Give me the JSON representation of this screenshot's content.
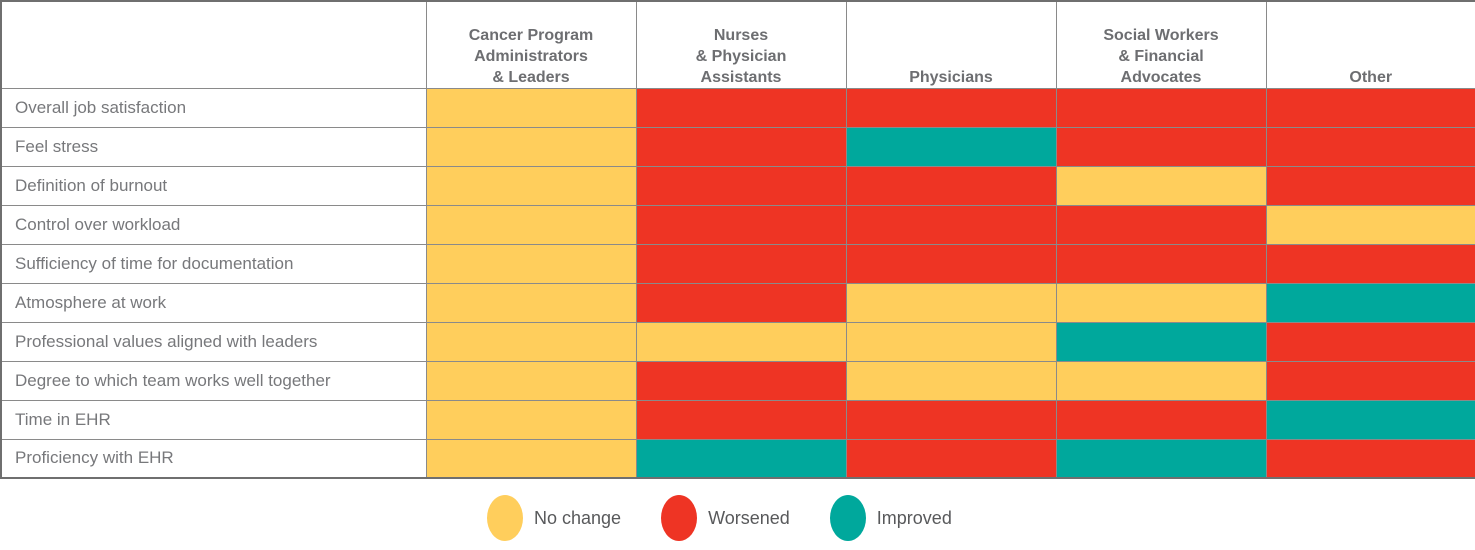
{
  "chart_data": {
    "type": "heatmap",
    "title": "",
    "columns": [
      "Cancer Program\nAdministrators\n& Leaders",
      "Nurses\n& Physician\nAssistants",
      "Physicians",
      "Social Workers\n& Financial\nAdvocates",
      "Other"
    ],
    "rows": [
      "Overall job satisfaction",
      "Feel stress",
      "Definition of burnout",
      "Control over workload",
      "Sufficiency of time for documentation",
      "Atmosphere at work",
      "Professional values aligned with leaders",
      "Degree to which team works well together",
      "Time in EHR",
      "Proficiency with EHR"
    ],
    "values": [
      [
        "No change",
        "Worsened",
        "Worsened",
        "Worsened",
        "Worsened"
      ],
      [
        "No change",
        "Worsened",
        "Improved",
        "Worsened",
        "Worsened"
      ],
      [
        "No change",
        "Worsened",
        "Worsened",
        "No change",
        "Worsened"
      ],
      [
        "No change",
        "Worsened",
        "Worsened",
        "Worsened",
        "No change"
      ],
      [
        "No change",
        "Worsened",
        "Worsened",
        "Worsened",
        "Worsened"
      ],
      [
        "No change",
        "Worsened",
        "No change",
        "No change",
        "Improved"
      ],
      [
        "No change",
        "No change",
        "No change",
        "Improved",
        "Worsened"
      ],
      [
        "No change",
        "Worsened",
        "No change",
        "No change",
        "Worsened"
      ],
      [
        "No change",
        "Worsened",
        "Worsened",
        "Worsened",
        "Improved"
      ],
      [
        "No change",
        "Improved",
        "Worsened",
        "Improved",
        "Worsened"
      ]
    ],
    "legend_position": "bottom",
    "grid": true
  },
  "legend": {
    "items": [
      {
        "label": "No change",
        "color": "#FFCE5C"
      },
      {
        "label": "Worsened",
        "color": "#EE3424"
      },
      {
        "label": "Improved",
        "color": "#00A89C"
      }
    ]
  },
  "colors": {
    "grid": "#8a8a8a",
    "header_text": "#6d6e71",
    "row_label_text": "#77787b",
    "legend_text": "#58595b"
  }
}
